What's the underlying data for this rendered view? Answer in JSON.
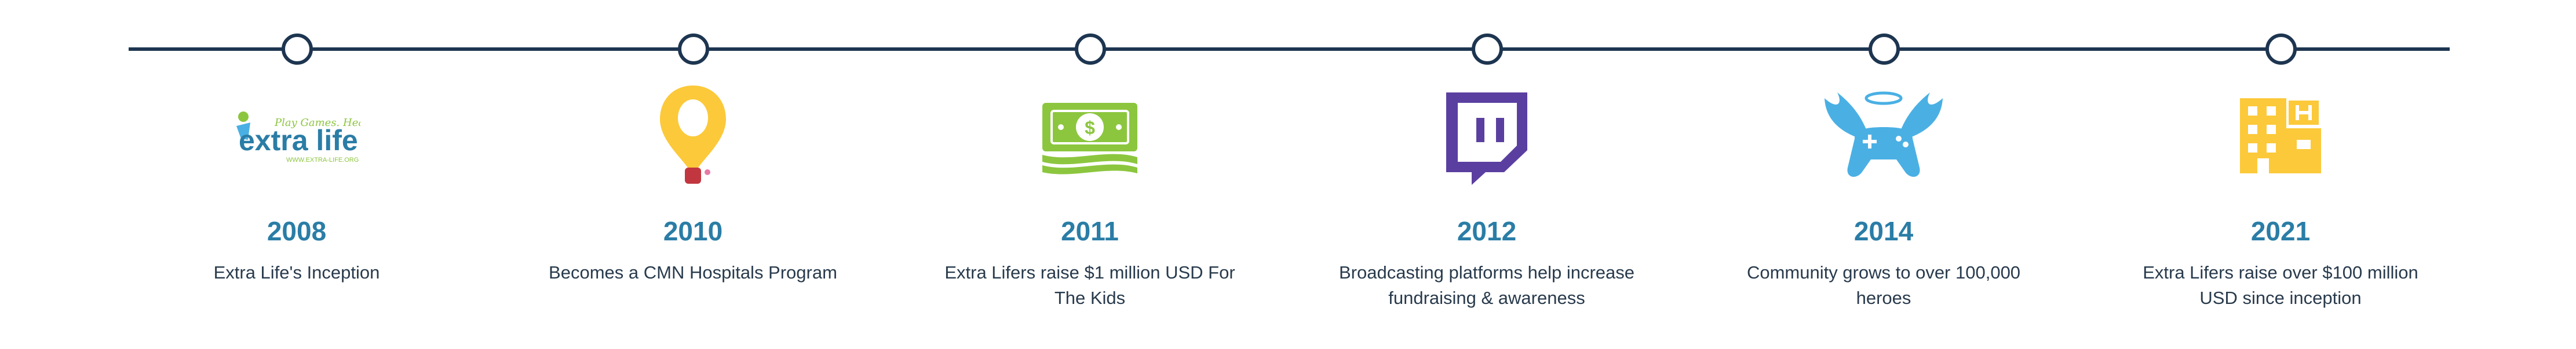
{
  "timeline": {
    "milestones": [
      {
        "year": "2008",
        "text": "Extra Life's Inception",
        "icon": "extra-life-logo",
        "logo_text": "extra life",
        "logo_tagline": "Play Games. Heal Kids.",
        "logo_url": "WWW.EXTRA-LIFE.ORG"
      },
      {
        "year": "2010",
        "text": "Becomes a CMN Hospitals Program",
        "icon": "cmn-balloon-icon"
      },
      {
        "year": "2011",
        "text": "Extra Lifers raise $1 million USD For The Kids",
        "icon": "money-icon"
      },
      {
        "year": "2012",
        "text": "Broadcasting platforms help increase fundraising & awareness",
        "icon": "twitch-icon"
      },
      {
        "year": "2014",
        "text": "Community grows to over 100,000 heroes",
        "icon": "winged-controller-icon"
      },
      {
        "year": "2021",
        "text": "Extra Lifers raise over $100 million USD since inception",
        "icon": "hospital-icon"
      }
    ]
  },
  "colors": {
    "line": "#1d3550",
    "year": "#2a7da6",
    "text": "#283a4c",
    "green": "#8cc63f",
    "yellow": "#fcc93a",
    "purple": "#5b3fa0",
    "sky": "#4ab0e4",
    "red": "#c2373f"
  }
}
